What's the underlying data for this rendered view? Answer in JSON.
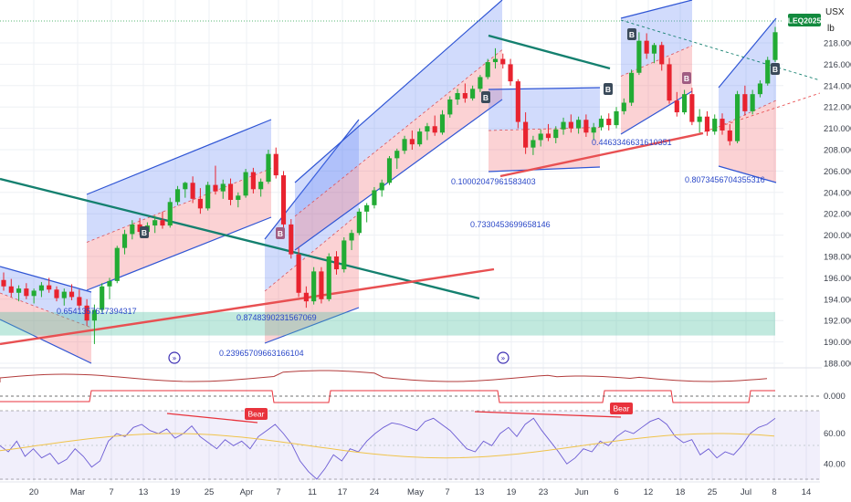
{
  "chart_data": {
    "type": "candlestick",
    "symbol_badge": "LEQ2025",
    "currency": "USX",
    "unit": "lb",
    "ylim": [
      186.5,
      219.5
    ],
    "y_ticks": [
      188,
      190,
      192,
      194,
      196,
      198,
      200,
      202,
      204,
      206,
      208,
      210,
      212,
      214,
      216,
      218
    ],
    "y_tick_labels": [
      "188.000",
      "190.000",
      "192.000",
      "194.000",
      "196.000",
      "198.000",
      "200.000",
      "202.000",
      "204.000",
      "206.000",
      "208.000",
      "210.000",
      "212.000",
      "214.000",
      "216.000",
      "218.000"
    ],
    "x_tick_labels": [
      "20",
      "Mar",
      "7",
      "13",
      "19",
      "25",
      "Apr",
      "7",
      "11",
      "17",
      "24",
      "May",
      "7",
      "13",
      "19",
      "23",
      "Jun",
      "6",
      "12",
      "18",
      "25",
      "Jul",
      "8",
      "14"
    ],
    "last_price": 219.0,
    "grid": true,
    "annotations": [
      {
        "text": "0.6541357617394317",
        "value": 0.6541357617394317
      },
      {
        "text": "0.874839023156709",
        "value": 0.874839023156709
      },
      {
        "text": "0.2396570966316610 4",
        "value": 0.23965709663166104
      },
      {
        "text": "0.10002047961583403",
        "value": 0.10002047961583403
      },
      {
        "text": "0.7330453699658146",
        "value": 0.7330453699658146
      },
      {
        "text": "0.44633466316103",
        "value": 0.44633466316103
      },
      {
        "text": "0.8073456704355316",
        "value": 0.8073456704355316
      }
    ],
    "annotation_labels": [
      "0.6541357617394317",
      "0.8748390231567069",
      "0.23965709663166104",
      "0.10002047961583403",
      "0.7330453699658146",
      "0.4463346631610351",
      "0.8073456704355316"
    ],
    "markers": [
      "B",
      "B",
      "B",
      "B",
      "B",
      "B",
      "B"
    ],
    "candles": [
      [
        195.8,
        196.5,
        194.8,
        195.2
      ],
      [
        195.2,
        195.9,
        194.2,
        194.6
      ],
      [
        194.6,
        195.3,
        193.8,
        195.0
      ],
      [
        195.0,
        195.5,
        194.0,
        194.3
      ],
      [
        194.3,
        195.0,
        193.6,
        194.8
      ],
      [
        194.8,
        195.6,
        194.2,
        195.3
      ],
      [
        195.3,
        196.0,
        194.6,
        194.9
      ],
      [
        194.9,
        195.2,
        193.8,
        194.1
      ],
      [
        194.1,
        195.0,
        193.4,
        194.7
      ],
      [
        194.7,
        195.4,
        193.9,
        194.2
      ],
      [
        194.2,
        194.9,
        193.0,
        193.4
      ],
      [
        193.4,
        194.0,
        191.5,
        192.0
      ],
      [
        192.0,
        193.5,
        189.8,
        193.0
      ],
      [
        193.0,
        195.5,
        192.8,
        195.2
      ],
      [
        195.2,
        196.0,
        194.0,
        195.7
      ],
      [
        195.7,
        199.0,
        195.5,
        198.8
      ],
      [
        198.8,
        200.5,
        198.2,
        200.1
      ],
      [
        200.1,
        201.4,
        199.6,
        201.0
      ],
      [
        201.0,
        201.6,
        200.0,
        200.3
      ],
      [
        200.3,
        201.2,
        199.8,
        200.9
      ],
      [
        200.9,
        201.8,
        200.2,
        201.4
      ],
      [
        201.4,
        202.2,
        200.6,
        200.9
      ],
      [
        200.9,
        203.5,
        200.7,
        203.1
      ],
      [
        203.1,
        204.6,
        202.8,
        204.3
      ],
      [
        204.3,
        205.0,
        203.5,
        204.9
      ],
      [
        204.9,
        205.5,
        203.0,
        203.4
      ],
      [
        203.4,
        204.4,
        202.0,
        202.5
      ],
      [
        202.5,
        205.0,
        202.3,
        204.7
      ],
      [
        204.7,
        206.5,
        203.8,
        204.1
      ],
      [
        204.1,
        205.2,
        203.4,
        204.8
      ],
      [
        204.8,
        205.3,
        202.8,
        203.3
      ],
      [
        203.3,
        204.0,
        202.6,
        203.7
      ],
      [
        203.7,
        206.2,
        203.5,
        205.9
      ],
      [
        205.9,
        206.3,
        203.9,
        204.3
      ],
      [
        204.3,
        205.3,
        203.6,
        205.0
      ],
      [
        205.0,
        208.0,
        204.8,
        207.6
      ],
      [
        207.6,
        208.2,
        205.3,
        205.6
      ],
      [
        205.6,
        206.0,
        200.5,
        201.0
      ],
      [
        201.0,
        201.5,
        197.8,
        198.2
      ],
      [
        198.2,
        198.8,
        194.2,
        194.6
      ],
      [
        194.6,
        195.2,
        193.2,
        193.8
      ],
      [
        193.8,
        197.0,
        193.5,
        196.6
      ],
      [
        196.6,
        197.0,
        193.6,
        194.0
      ],
      [
        194.0,
        198.3,
        193.8,
        198.0
      ],
      [
        198.0,
        198.5,
        196.3,
        196.8
      ],
      [
        196.8,
        199.8,
        196.5,
        199.5
      ],
      [
        199.5,
        200.5,
        198.6,
        200.2
      ],
      [
        200.2,
        202.5,
        200.0,
        202.2
      ],
      [
        202.2,
        203.0,
        201.2,
        202.8
      ],
      [
        202.8,
        204.5,
        202.5,
        204.2
      ],
      [
        204.2,
        205.2,
        203.6,
        204.9
      ],
      [
        204.9,
        207.4,
        204.7,
        207.2
      ],
      [
        207.2,
        208.1,
        206.2,
        207.9
      ],
      [
        207.9,
        209.3,
        207.6,
        209.0
      ],
      [
        209.0,
        209.8,
        208.0,
        208.5
      ],
      [
        208.5,
        210.0,
        208.3,
        209.7
      ],
      [
        209.7,
        210.5,
        208.9,
        210.2
      ],
      [
        210.2,
        211.2,
        209.3,
        209.6
      ],
      [
        209.6,
        211.7,
        209.4,
        211.3
      ],
      [
        211.3,
        213.0,
        211.0,
        212.7
      ],
      [
        212.7,
        213.7,
        212.2,
        213.3
      ],
      [
        213.3,
        214.2,
        212.4,
        212.8
      ],
      [
        212.8,
        214.0,
        212.6,
        213.7
      ],
      [
        213.7,
        215.0,
        213.4,
        214.8
      ],
      [
        214.8,
        216.5,
        214.6,
        216.2
      ],
      [
        216.2,
        217.5,
        215.6,
        216.5
      ],
      [
        216.5,
        217.0,
        215.6,
        216.0
      ],
      [
        216.0,
        216.5,
        214.0,
        214.4
      ],
      [
        214.4,
        214.6,
        210.0,
        210.6
      ],
      [
        210.6,
        211.5,
        207.6,
        208.2
      ],
      [
        208.2,
        209.3,
        207.5,
        208.9
      ],
      [
        208.9,
        209.9,
        208.3,
        209.5
      ],
      [
        209.5,
        210.4,
        208.8,
        209.1
      ],
      [
        209.1,
        210.2,
        208.6,
        209.9
      ],
      [
        209.9,
        211.0,
        209.4,
        210.6
      ],
      [
        210.6,
        211.3,
        209.6,
        210.0
      ],
      [
        210.0,
        211.1,
        209.5,
        210.8
      ],
      [
        210.8,
        211.3,
        209.2,
        209.6
      ],
      [
        209.6,
        210.5,
        208.9,
        210.1
      ],
      [
        210.1,
        211.2,
        209.8,
        210.9
      ],
      [
        210.9,
        211.4,
        209.8,
        210.3
      ],
      [
        210.3,
        212.0,
        210.0,
        211.6
      ],
      [
        211.6,
        212.8,
        211.3,
        212.4
      ],
      [
        212.4,
        215.5,
        212.1,
        215.2
      ],
      [
        215.2,
        219.0,
        215.0,
        218.2
      ],
      [
        218.2,
        218.9,
        216.5,
        217.0
      ],
      [
        217.0,
        218.0,
        216.1,
        217.8
      ],
      [
        217.8,
        218.1,
        215.4,
        216.0
      ],
      [
        216.0,
        216.6,
        212.3,
        212.6
      ],
      [
        212.6,
        213.4,
        211.1,
        211.5
      ],
      [
        211.5,
        213.6,
        211.3,
        213.2
      ],
      [
        213.2,
        213.8,
        210.3,
        210.6
      ],
      [
        210.6,
        211.8,
        209.6,
        211.1
      ],
      [
        211.1,
        211.6,
        209.3,
        209.7
      ],
      [
        209.7,
        211.3,
        209.4,
        210.9
      ],
      [
        210.9,
        211.4,
        209.4,
        209.8
      ],
      [
        209.8,
        210.4,
        208.4,
        208.8
      ],
      [
        208.8,
        213.5,
        208.6,
        213.2
      ],
      [
        213.2,
        214.0,
        211.2,
        211.6
      ],
      [
        211.6,
        213.6,
        211.3,
        213.2
      ],
      [
        213.2,
        214.5,
        212.9,
        214.2
      ],
      [
        214.2,
        216.7,
        214.0,
        216.4
      ],
      [
        216.4,
        219.5,
        216.2,
        219.0
      ]
    ],
    "rsi_ticks": [
      60,
      40
    ],
    "rsi_tick_labels": [
      "60.00",
      "40.00"
    ],
    "indicator2_tick_labels": [
      "0.000"
    ],
    "divergence_labels": [
      "Bear",
      "Bear"
    ]
  }
}
